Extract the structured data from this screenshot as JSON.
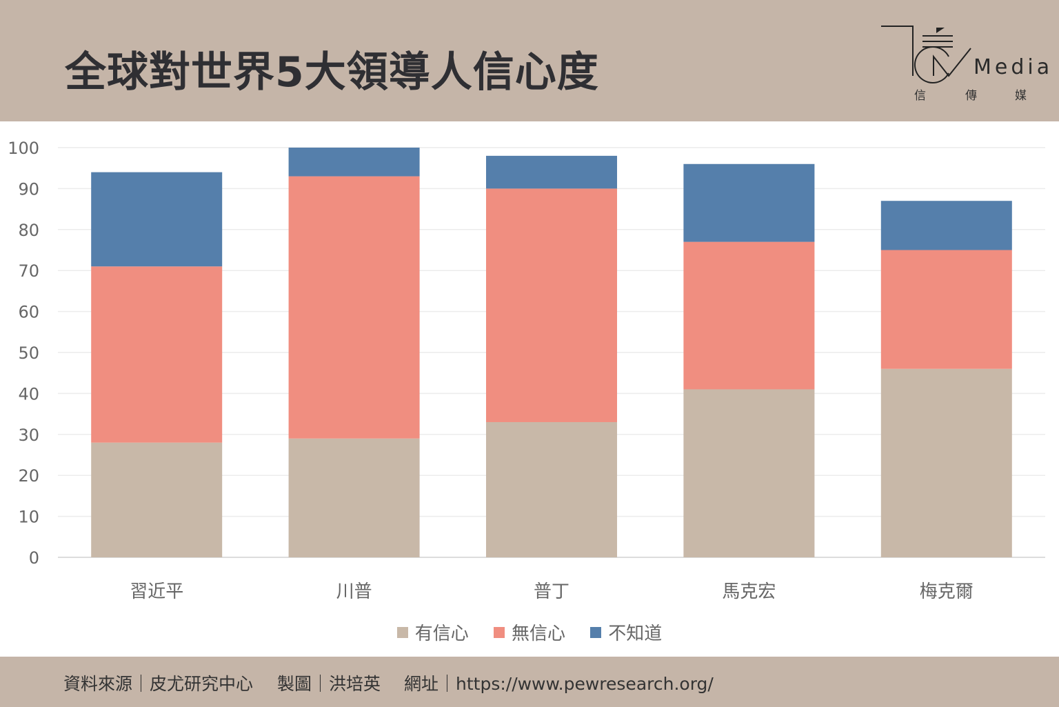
{
  "header": {
    "title": "全球對世界5大領導人信心度"
  },
  "logo": {
    "word": "Media",
    "sub": [
      "信",
      "傳",
      "媒"
    ]
  },
  "footer": {
    "source_label": "資料來源｜皮尤研究中心",
    "maker_label": "製圖｜洪培英",
    "url_label": "網址｜https://www.pewresearch.org/"
  },
  "chart_data": {
    "type": "bar",
    "stacked": true,
    "title": "全球對世界5大領導人信心度",
    "categories": [
      "習近平",
      "川普",
      "普丁",
      "馬克宏",
      "梅克爾"
    ],
    "series": [
      {
        "name": "有信心",
        "color": "#c8b8a8",
        "values": [
          28,
          29,
          33,
          41,
          46
        ]
      },
      {
        "name": "無信心",
        "color": "#f08e80",
        "values": [
          43,
          64,
          57,
          36,
          29
        ]
      },
      {
        "name": "不知道",
        "color": "#557fab",
        "values": [
          23,
          7,
          8,
          19,
          12
        ]
      }
    ],
    "yticks": [
      "0",
      "10",
      "20",
      "30",
      "40",
      "50",
      "60",
      "70",
      "80",
      "90",
      "100"
    ],
    "ylim": [
      0,
      100
    ],
    "grid": true,
    "legend_position": "bottom",
    "xlabel": "",
    "ylabel": ""
  }
}
